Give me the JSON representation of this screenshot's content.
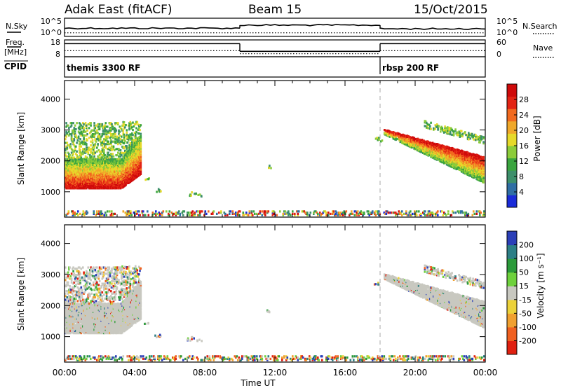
{
  "header": {
    "station": "Adak East (fitACF)",
    "beam": "Beam 15",
    "date": "15/Oct/2015"
  },
  "colors": {
    "power_scale": [
      "#1a2bd9",
      "#2f6ea4",
      "#3d8f6b",
      "#3aa53f",
      "#8ccc3a",
      "#e6d92a",
      "#f0a82a",
      "#f26a1f",
      "#e32414",
      "#cf0a0a"
    ],
    "velocity_scale": [
      "#2b3fb8",
      "#2d7f86",
      "#2b9a3a",
      "#6ed13c",
      "#c8c8c0",
      "#ecd23a",
      "#f0a030",
      "#f06020",
      "#e02010"
    ],
    "velocity_ground": "#c8c8c0"
  },
  "chart_data": [
    {
      "type": "line",
      "panel": "nsky-nsearch",
      "left_label": "N.Sky",
      "right_label": "N.Search",
      "left_ticks": [
        "10^5",
        "10^0"
      ],
      "right_ticks": [
        "10^5",
        "10^0"
      ],
      "segments": [
        {
          "start": 0,
          "end": 10,
          "level": 0.45
        },
        {
          "start": 10,
          "end": 18,
          "level": 0.62
        },
        {
          "start": 18,
          "end": 24,
          "level": 0.42
        }
      ],
      "search_level": 0.2
    },
    {
      "type": "line",
      "panel": "freq-nave",
      "left_label_lines": [
        "Freq.",
        "[MHz]"
      ],
      "right_label": "Nave",
      "left_ticks": [
        "18",
        "8"
      ],
      "right_ticks": [
        "60",
        "0"
      ],
      "freq_segments": [
        {
          "start": 0,
          "end": 10,
          "value": 0.78
        },
        {
          "start": 10,
          "end": 18,
          "value": 0.32
        },
        {
          "start": 18,
          "end": 24,
          "value": 0.78
        }
      ],
      "nave_segments": [
        {
          "start": 0,
          "end": 10,
          "value": 0.36
        },
        {
          "start": 10,
          "end": 18,
          "value": 0.18
        },
        {
          "start": 18,
          "end": 24,
          "value": 0.36
        }
      ]
    },
    {
      "type": "table",
      "panel": "cpid",
      "label": "CPID",
      "modes": [
        {
          "start": 0,
          "text": "themis 3300 RF"
        },
        {
          "start": 18,
          "text": "rbsp 200 RF"
        }
      ]
    },
    {
      "type": "heatmap",
      "panel": "power",
      "ylabel": "Slant Range [km]",
      "yticks": [
        1000,
        2000,
        3000,
        4000
      ],
      "ylim": [
        180,
        4600
      ],
      "xlim": [
        0,
        24
      ],
      "colorbar_label": "Power [dB]",
      "colorbar_ticks": [
        4,
        8,
        12,
        16,
        20,
        24,
        28
      ],
      "clim": [
        0,
        30
      ],
      "mode_change_time": 18
    },
    {
      "type": "heatmap",
      "panel": "velocity",
      "ylabel": "Slant Range [km]",
      "yticks": [
        1000,
        2000,
        3000,
        4000
      ],
      "ylim": [
        180,
        4600
      ],
      "xlim": [
        0,
        24
      ],
      "colorbar_label": "Velocity [m s⁻¹]",
      "colorbar_ticks": [
        200,
        100,
        50,
        15,
        -15,
        -50,
        -100,
        -200
      ],
      "mode_change_time": 18
    }
  ],
  "x_axis": {
    "label": "Time UT",
    "tick_hours": [
      0,
      4,
      8,
      12,
      16,
      20,
      24
    ],
    "tick_labels": [
      "00:00",
      "04:00",
      "08:00",
      "12:00",
      "16:00",
      "20:00",
      "00:00"
    ]
  }
}
